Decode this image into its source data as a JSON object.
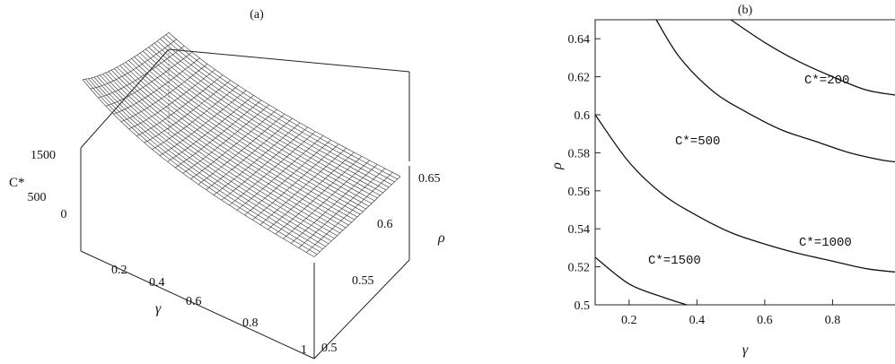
{
  "chart_data": [
    {
      "type": "surface",
      "panel_label": "(a)",
      "zlabel": "C*",
      "xlabel": "γ",
      "ylabel": "ρ",
      "x_ticks": [
        "0.2",
        "0.4",
        "0.6",
        "0.8",
        "1"
      ],
      "y_ticks": [
        "0.5",
        "0.55",
        "0.6",
        "0.65"
      ],
      "z_ticks": [
        "1500",
        "500",
        "0"
      ],
      "xlim": [
        0.1,
        1
      ],
      "ylim": [
        0.5,
        0.65
      ],
      "grid": "mesh"
    },
    {
      "type": "contour",
      "panel_label": "(b)",
      "xlabel": "γ",
      "ylabel": "ρ",
      "xlim": [
        0.1,
        1
      ],
      "ylim": [
        0.5,
        0.65
      ],
      "x_ticks": [
        "0.2",
        "0.4",
        "0.6",
        "0.8",
        "1"
      ],
      "y_ticks": [
        "0.5",
        "0.52",
        "0.54",
        "0.56",
        "0.58",
        "0.6",
        "0.62",
        "0.64"
      ],
      "series": [
        {
          "name": "C*=1500",
          "points": [
            [
              0.1,
              0.525
            ],
            [
              0.2,
              0.511
            ],
            [
              0.3,
              0.504
            ],
            [
              0.37,
              0.5
            ]
          ]
        },
        {
          "name": "C*=1000",
          "points": [
            [
              0.1,
              0.6
            ],
            [
              0.2,
              0.575
            ],
            [
              0.3,
              0.558
            ],
            [
              0.4,
              0.547
            ],
            [
              0.5,
              0.538
            ],
            [
              0.6,
              0.532
            ],
            [
              0.7,
              0.527
            ],
            [
              0.8,
              0.523
            ],
            [
              0.9,
              0.519
            ],
            [
              1.0,
              0.517
            ]
          ]
        },
        {
          "name": "C*=500",
          "points": [
            [
              0.28,
              0.65
            ],
            [
              0.35,
              0.63
            ],
            [
              0.45,
              0.612
            ],
            [
              0.55,
              0.601
            ],
            [
              0.65,
              0.592
            ],
            [
              0.75,
              0.586
            ],
            [
              0.85,
              0.58
            ],
            [
              0.95,
              0.576
            ],
            [
              1.0,
              0.575
            ]
          ]
        },
        {
          "name": "C*=200",
          "points": [
            [
              0.5,
              0.65
            ],
            [
              0.6,
              0.638
            ],
            [
              0.7,
              0.628
            ],
            [
              0.8,
              0.62
            ],
            [
              0.9,
              0.613
            ],
            [
              1.0,
              0.61
            ]
          ]
        }
      ]
    }
  ]
}
